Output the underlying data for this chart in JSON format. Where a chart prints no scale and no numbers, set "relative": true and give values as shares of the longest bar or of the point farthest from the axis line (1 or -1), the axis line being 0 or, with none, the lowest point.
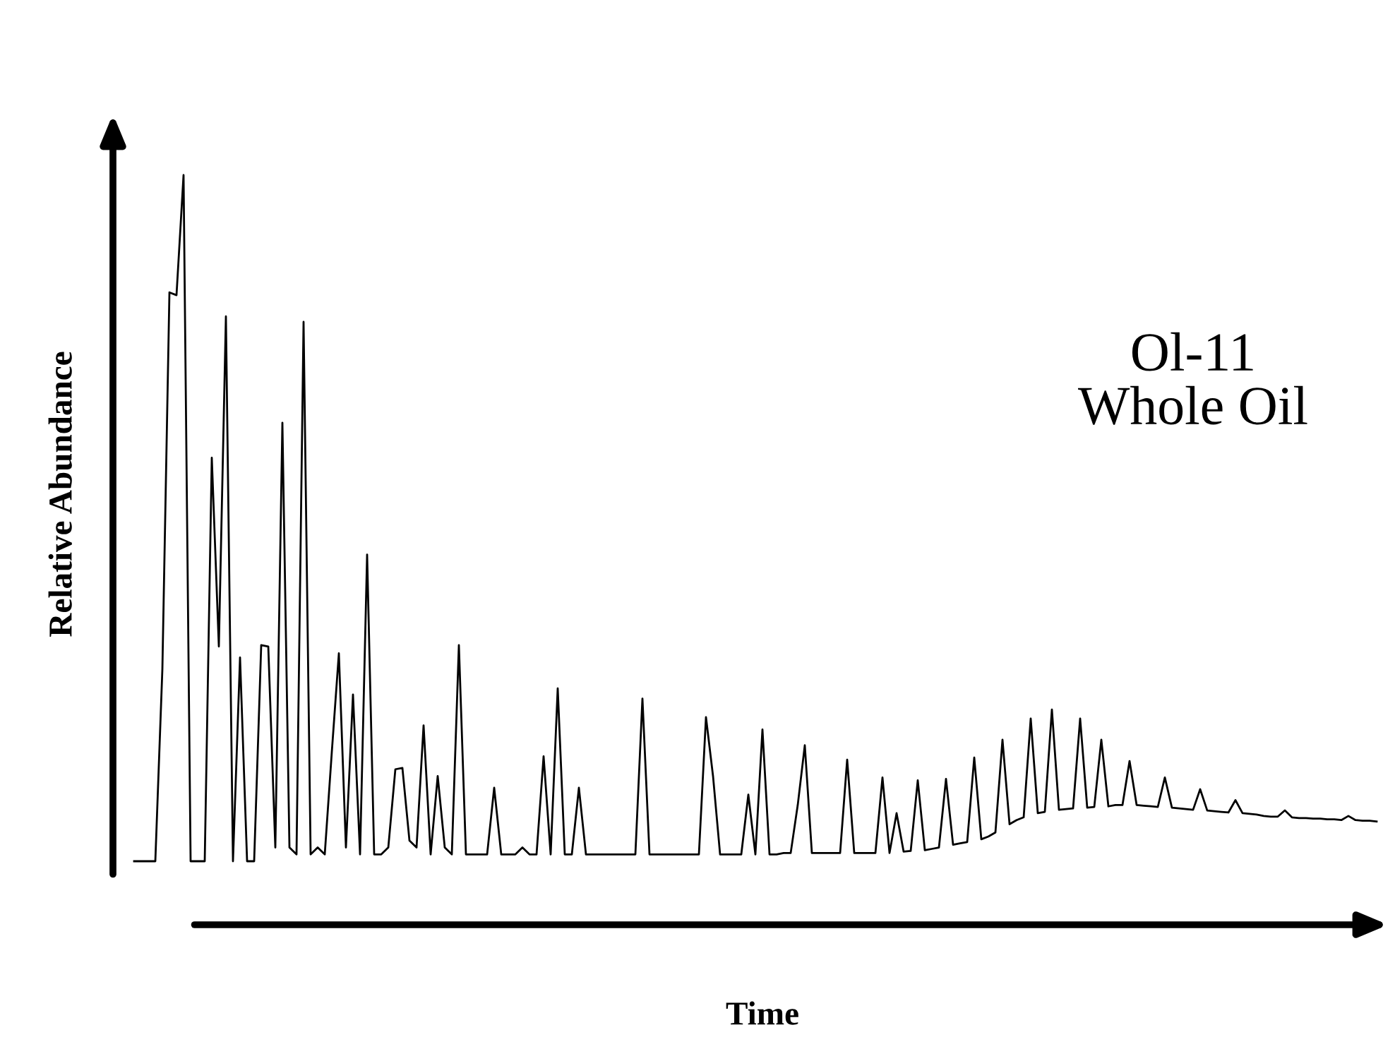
{
  "chart_data": {
    "type": "line",
    "relative": true,
    "xlabel": "Time",
    "ylabel": "Relative Abundance",
    "annotations": [
      "Ol-11\nWhole Oil"
    ],
    "marker": "none",
    "line_style": "solid",
    "categories": [
      null,
      null,
      null,
      null,
      null,
      null,
      null,
      null,
      null,
      null,
      null,
      null,
      null,
      null,
      null,
      null,
      null,
      null,
      null,
      null,
      null,
      null,
      null,
      null,
      null,
      null,
      null,
      null,
      null,
      null,
      null,
      null,
      null,
      null,
      null,
      null,
      null,
      null,
      null,
      null,
      null,
      null,
      null,
      null,
      null,
      null,
      null,
      null,
      null,
      null,
      null,
      null,
      null,
      null,
      null,
      null,
      null,
      null,
      null,
      null,
      null,
      null,
      null,
      null,
      null,
      null,
      null,
      null,
      null,
      null,
      null,
      null,
      null,
      null,
      null,
      null,
      null,
      null,
      null,
      null,
      null,
      null,
      null,
      null,
      null,
      null,
      null,
      null,
      null,
      null,
      null,
      null,
      null,
      null,
      null,
      null,
      null,
      null,
      null,
      null,
      null,
      null,
      null,
      null,
      null,
      null,
      null,
      null,
      null,
      null,
      null,
      null,
      null,
      null,
      null,
      null,
      null,
      null,
      null,
      null,
      null,
      null,
      null,
      null,
      null,
      null,
      null,
      null,
      null,
      null,
      null,
      null,
      null,
      null,
      null,
      null,
      null,
      null,
      null,
      null,
      null,
      null,
      null,
      null,
      null,
      null,
      null,
      null,
      null,
      null,
      null,
      null,
      null,
      null,
      null,
      null,
      null,
      null,
      null,
      null,
      null,
      null,
      null,
      null,
      null,
      null,
      null,
      null,
      null,
      null,
      null,
      null,
      null,
      null,
      null,
      null,
      null
    ],
    "series": [
      {
        "color": "#000000",
        "values": [
          0,
          0,
          0,
          0,
          0.28,
          0.829,
          0.825,
          1.0,
          0,
          0,
          0,
          0.588,
          0.313,
          0.794,
          0,
          0.297,
          0,
          0,
          0.315,
          0.313,
          0.02,
          0.639,
          0.02,
          0.01,
          0.786,
          0.01,
          0.02,
          0.01,
          0.159,
          0.303,
          0.02,
          0.243,
          0.01,
          0.447,
          0.01,
          0.01,
          0.02,
          0.134,
          0.136,
          0.03,
          0.02,
          0.198,
          0.01,
          0.124,
          0.02,
          0.01,
          0.315,
          0.01,
          0.01,
          0.01,
          0.01,
          0.107,
          0.01,
          0.01,
          0.01,
          0.02,
          0.01,
          0.01,
          0.153,
          0.01,
          0.252,
          0.01,
          0.01,
          0.107,
          0.01,
          0.01,
          0.01,
          0.01,
          0.01,
          0.01,
          0.01,
          0.01,
          0.237,
          0.01,
          0.01,
          0.01,
          0.01,
          0.01,
          0.01,
          0.01,
          0.01,
          0.21,
          0.124,
          0.01,
          0.01,
          0.01,
          0.01,
          0.097,
          0.01,
          0.192,
          0.01,
          0.01,
          0.012,
          0.012,
          0.082,
          0.169,
          0.012,
          0.012,
          0.012,
          0.012,
          0.012,
          0.148,
          0.012,
          0.012,
          0.012,
          0.012,
          0.122,
          0.012,
          0.07,
          0.014,
          0.015,
          0.118,
          0.016,
          0.018,
          0.02,
          0.12,
          0.024,
          0.026,
          0.028,
          0.151,
          0.032,
          0.036,
          0.042,
          0.177,
          0.054,
          0.06,
          0.064,
          0.208,
          0.07,
          0.072,
          0.221,
          0.075,
          0.076,
          0.077,
          0.208,
          0.078,
          0.079,
          0.177,
          0.08,
          0.082,
          0.082,
          0.146,
          0.082,
          0.081,
          0.08,
          0.079,
          0.122,
          0.078,
          0.077,
          0.076,
          0.075,
          0.105,
          0.074,
          0.073,
          0.072,
          0.071,
          0.089,
          0.07,
          0.069,
          0.068,
          0.066,
          0.065,
          0.065,
          0.074,
          0.064,
          0.063,
          0.063,
          0.062,
          0.062,
          0.061,
          0.061,
          0.06,
          0.066,
          0.06,
          0.059,
          0.059,
          0.058
        ]
      }
    ]
  }
}
